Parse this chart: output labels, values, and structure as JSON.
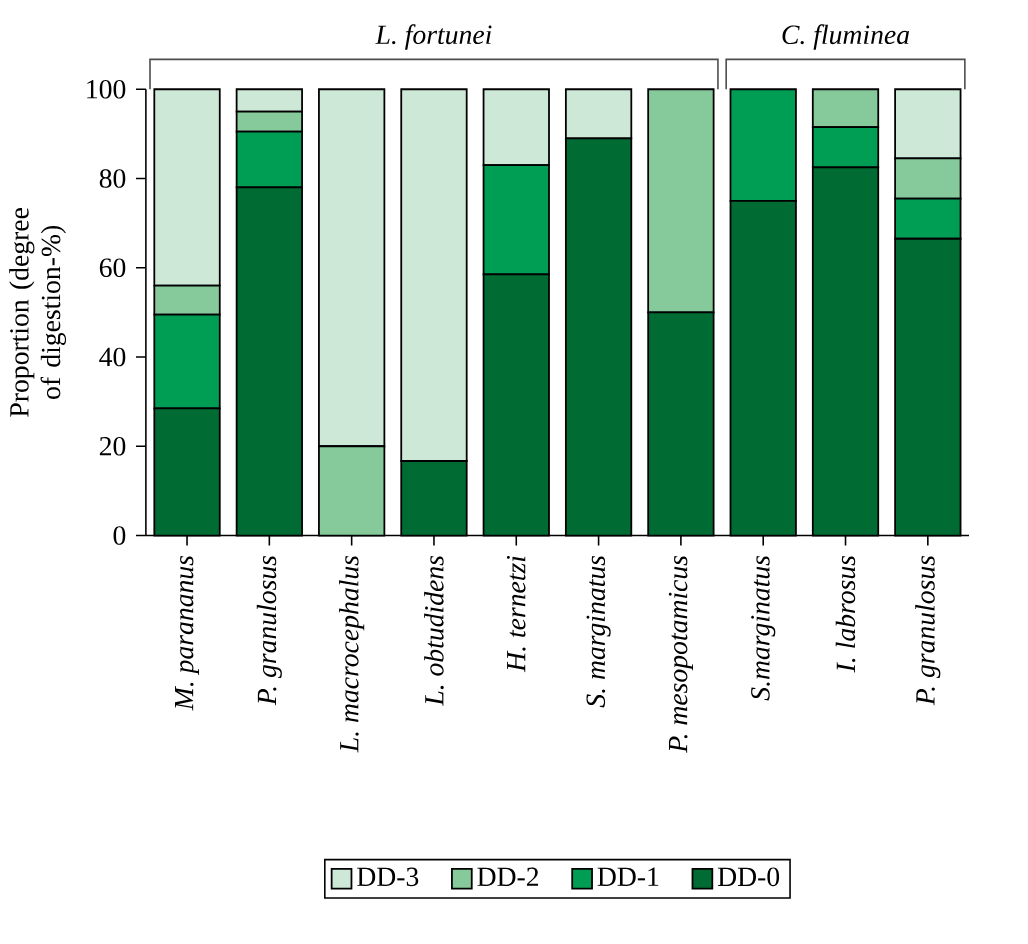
{
  "chart_data": {
    "type": "bar",
    "stacked": true,
    "ylabel": "Proportion (degree of digestion-%)",
    "annotations": [
      "L. fortunei",
      "C. fluminea"
    ],
    "categories": [
      "M. parananus",
      "P. granulosus",
      "L. macrocephalus",
      "L. obtudidens",
      "H. ternetzi",
      "S. marginatus",
      "P. mesopotamicus",
      "S.marginatus",
      "I. labrosus",
      "P. granulosus"
    ],
    "series": [
      {
        "name": "DD-0",
        "color": "#006b33",
        "values": [
          28.5,
          78,
          0,
          16.7,
          58.5,
          89,
          50,
          75,
          82.5,
          66.5
        ]
      },
      {
        "name": "DD-1",
        "color": "#009e55",
        "values": [
          21,
          12.5,
          0,
          0,
          24.5,
          0,
          0,
          25,
          9,
          9
        ]
      },
      {
        "name": "DD-2",
        "color": "#86c99b",
        "values": [
          6.5,
          4.5,
          20,
          0,
          0,
          0,
          50,
          0,
          8.5,
          9
        ]
      },
      {
        "name": "DD-3",
        "color": "#cde8d6",
        "values": [
          44,
          5,
          80,
          83.3,
          17,
          11,
          0,
          0,
          0,
          15.5
        ]
      }
    ],
    "ylim": [
      0,
      100
    ],
    "yticks": [
      0,
      20,
      40,
      60,
      80,
      100
    ],
    "legend": "bottom"
  }
}
